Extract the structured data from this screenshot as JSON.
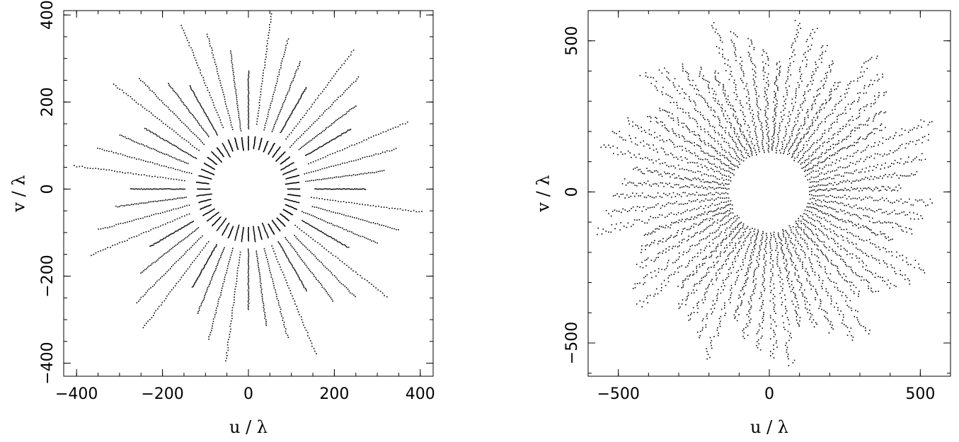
{
  "chart_data": [
    {
      "type": "scatter",
      "name": "uv-coverage-left",
      "xlabel": "u / λ",
      "ylabel": "v / λ",
      "xlim": [
        -430,
        430
      ],
      "ylim": [
        -430,
        410
      ],
      "xticks": [
        -400,
        -200,
        0,
        200,
        400
      ],
      "yticks": [
        -400,
        -200,
        0,
        200,
        400
      ],
      "xtick_labels": [
        "−400",
        "−200",
        "0",
        "200",
        "400"
      ],
      "ytick_labels": [
        "−400",
        "−200",
        "0",
        "200",
        "400"
      ],
      "grid": false,
      "description_pattern": {
        "spokes": 48,
        "inner_ring_r": [
          85,
          118
        ],
        "outer_ring_r": [
          135,
          410
        ]
      }
    },
    {
      "type": "scatter",
      "name": "uv-coverage-right",
      "xlabel": "u / λ",
      "ylabel": "v / λ",
      "xlim": [
        -600,
        600
      ],
      "ylim": [
        -610,
        600
      ],
      "xticks": [
        -500,
        0,
        500
      ],
      "yticks": [
        -500,
        0,
        500
      ],
      "xtick_labels": [
        "−500",
        "0",
        "500"
      ],
      "ytick_labels": [
        "−500",
        "0",
        "500"
      ],
      "grid": false,
      "description_pattern": {
        "spokes": 64,
        "inner_r": 130,
        "outer_r": 590
      }
    }
  ]
}
